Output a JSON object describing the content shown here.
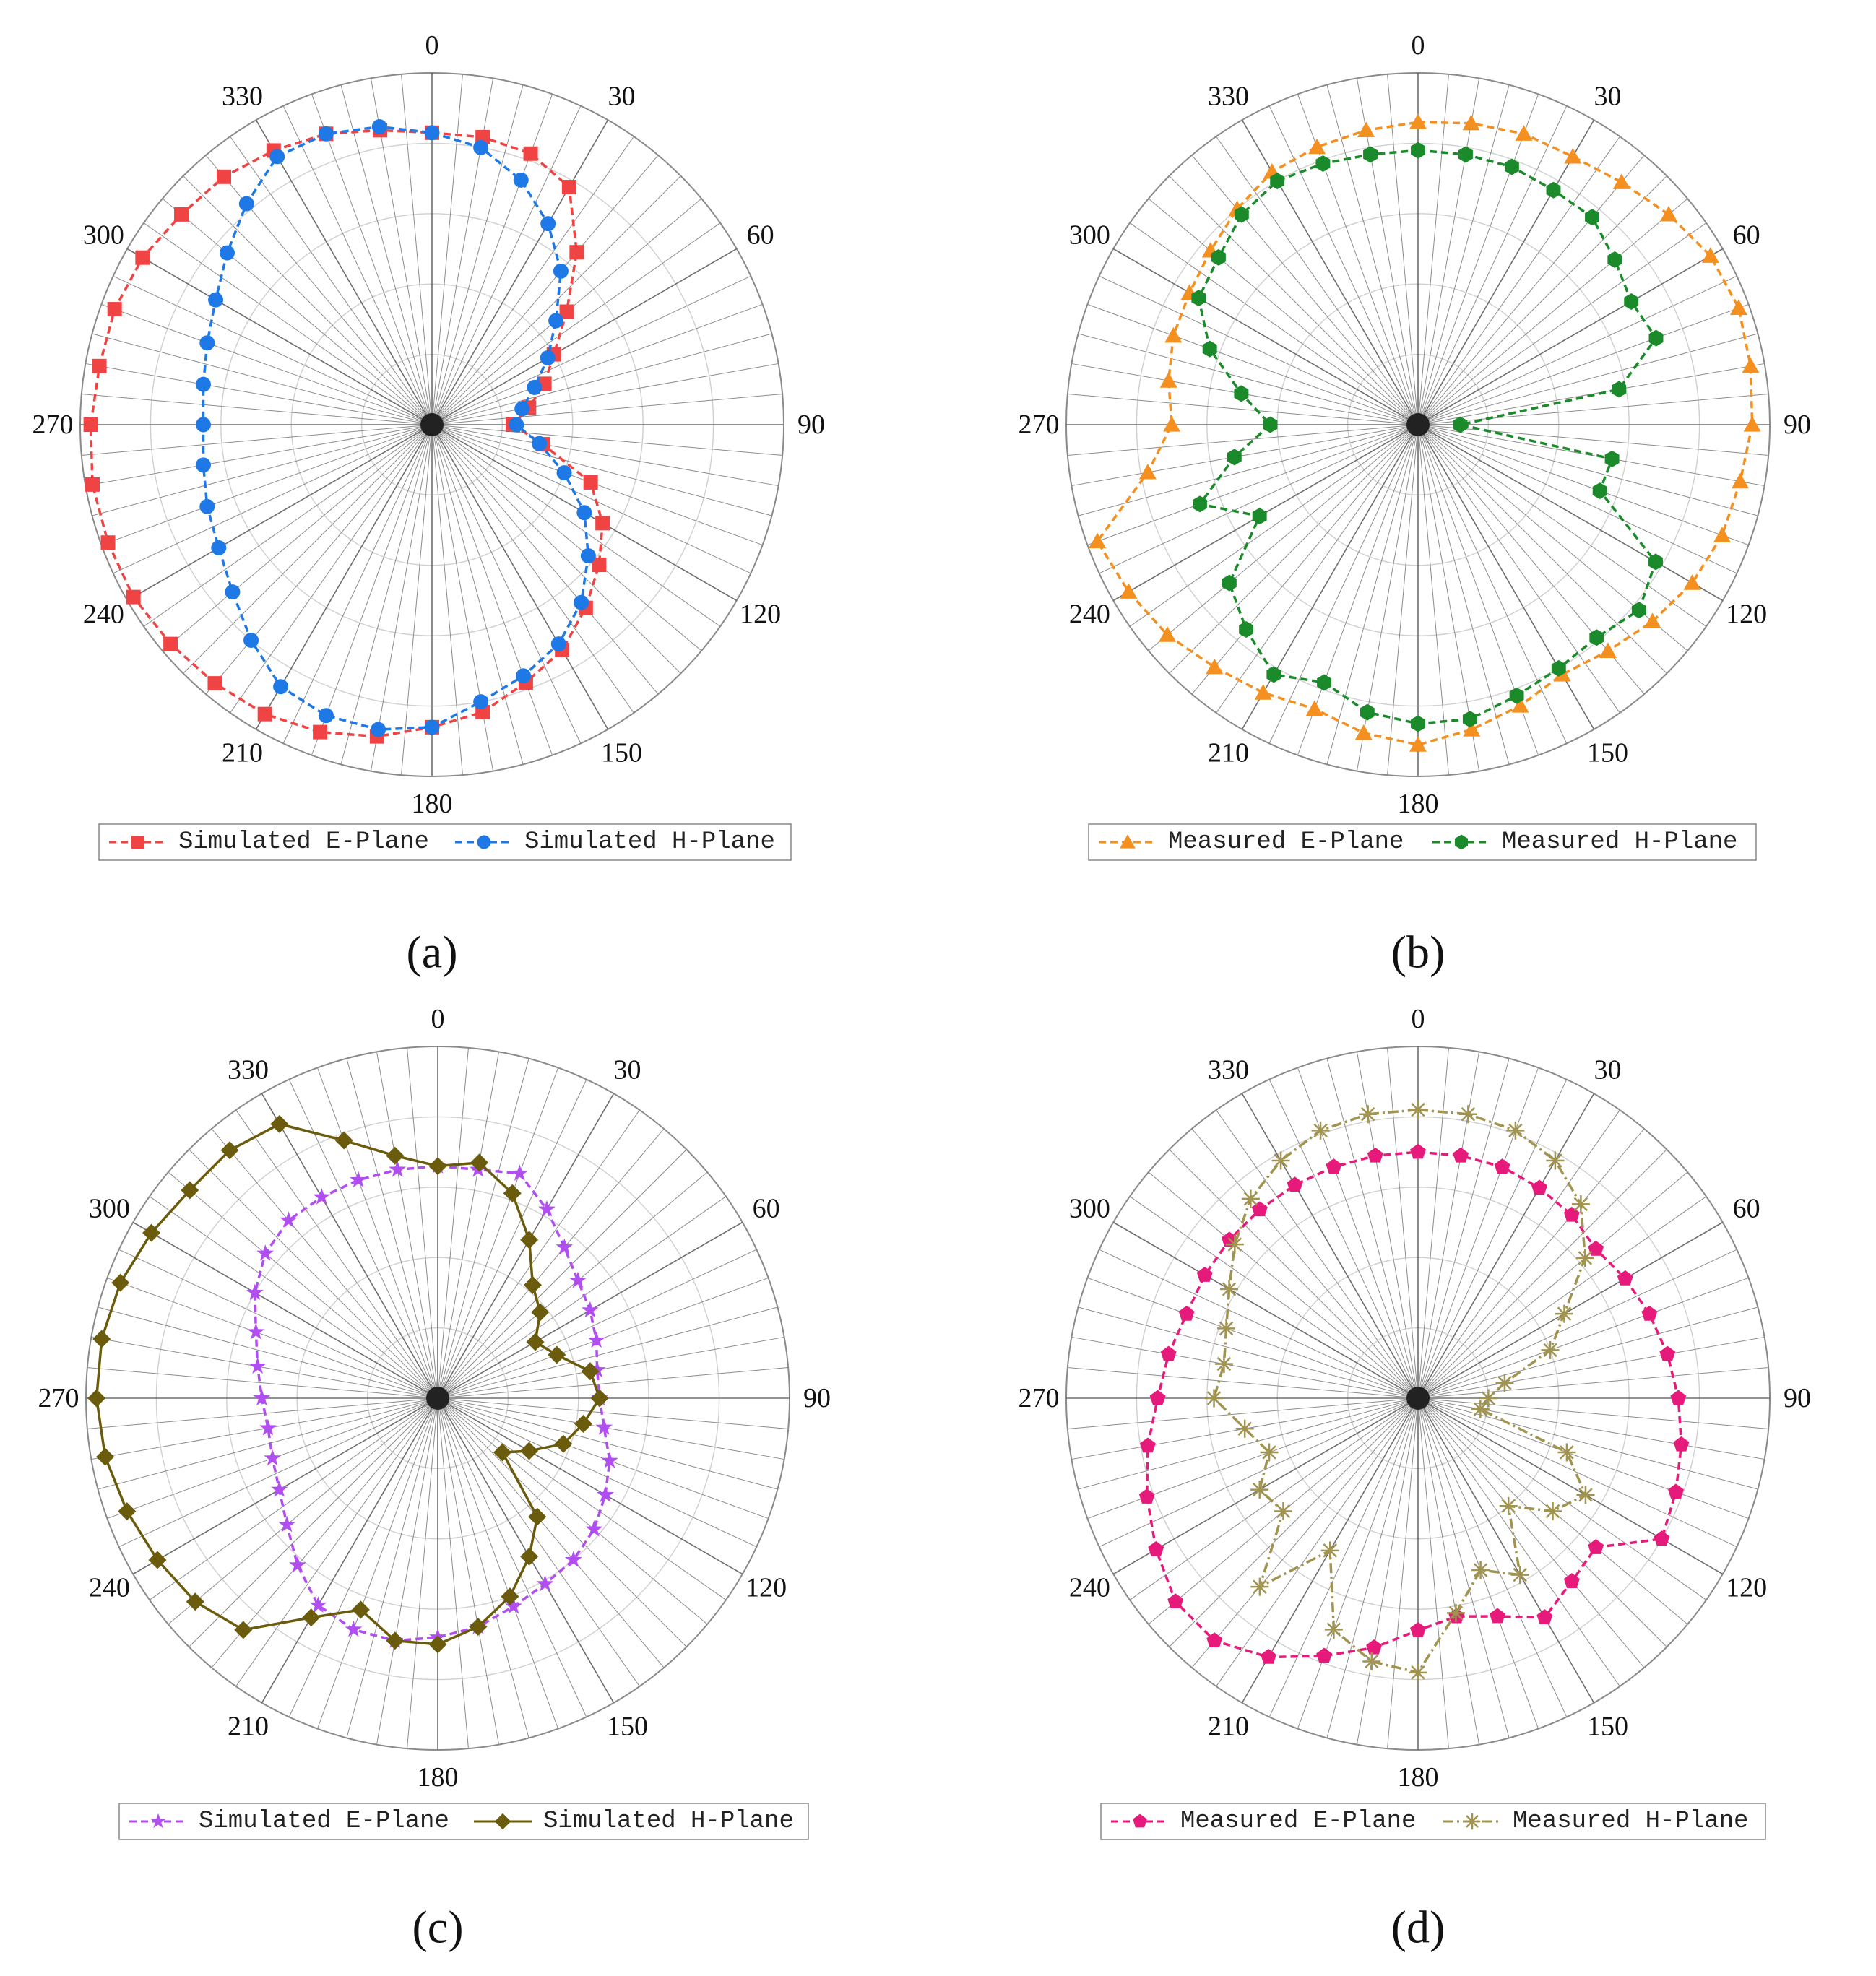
{
  "figure": {
    "panels": [
      "a",
      "b",
      "c",
      "d"
    ]
  },
  "chart_data": [
    {
      "type": "polar",
      "panel_label": "(a)",
      "angle_ticks": [
        "0",
        "30",
        "60",
        "90",
        "120",
        "150",
        "180",
        "210",
        "240",
        "270",
        "300",
        "330"
      ],
      "radial_grid_divisions": 5,
      "angle_grid_step_deg": 5,
      "rlim": [
        0,
        1
      ],
      "legend": {
        "placement": "bottom"
      },
      "series": [
        {
          "name": "Simulated E-Plane",
          "color": "#f04444",
          "marker": "square",
          "line": "dashed",
          "angles": [
            0,
            10,
            20,
            30,
            40,
            50,
            60,
            70,
            80,
            90,
            100,
            110,
            120,
            130,
            140,
            150,
            160,
            170,
            180,
            190,
            200,
            210,
            220,
            230,
            240,
            250,
            260,
            270,
            280,
            290,
            300,
            310,
            320,
            330,
            340,
            350
          ],
          "values": [
            0.83,
            0.83,
            0.82,
            0.78,
            0.64,
            0.5,
            0.4,
            0.34,
            0.28,
            0.23,
            0.32,
            0.48,
            0.56,
            0.62,
            0.68,
            0.74,
            0.78,
            0.83,
            0.86,
            0.9,
            0.93,
            0.95,
            0.96,
            0.97,
            0.98,
            0.98,
            0.98,
            0.97,
            0.96,
            0.96,
            0.95,
            0.93,
            0.92,
            0.9,
            0.88,
            0.85
          ]
        },
        {
          "name": "Simulated H-Plane",
          "color": "#1e78e6",
          "marker": "circle",
          "line": "dashed",
          "angles": [
            0,
            10,
            20,
            30,
            40,
            50,
            60,
            70,
            80,
            90,
            100,
            110,
            120,
            130,
            140,
            150,
            160,
            170,
            180,
            190,
            200,
            210,
            220,
            230,
            240,
            250,
            260,
            270,
            280,
            290,
            300,
            310,
            320,
            330,
            340,
            350
          ],
          "values": [
            0.83,
            0.8,
            0.74,
            0.66,
            0.57,
            0.46,
            0.38,
            0.31,
            0.26,
            0.24,
            0.31,
            0.4,
            0.5,
            0.58,
            0.66,
            0.72,
            0.76,
            0.8,
            0.86,
            0.88,
            0.88,
            0.86,
            0.8,
            0.74,
            0.7,
            0.68,
            0.66,
            0.65,
            0.66,
            0.68,
            0.71,
            0.76,
            0.82,
            0.88,
            0.88,
            0.86
          ]
        }
      ]
    },
    {
      "type": "polar",
      "panel_label": "(b)",
      "angle_ticks": [
        "0",
        "30",
        "60",
        "90",
        "120",
        "150",
        "180",
        "210",
        "240",
        "270",
        "300",
        "330"
      ],
      "radial_grid_divisions": 5,
      "angle_grid_step_deg": 5,
      "rlim": [
        0,
        1
      ],
      "legend": {
        "placement": "bottom"
      },
      "series": [
        {
          "name": "Measured E-Plane",
          "color": "#f39020",
          "marker": "triangle",
          "line": "dashed",
          "angles": [
            0,
            10,
            20,
            30,
            40,
            50,
            60,
            70,
            80,
            90,
            100,
            110,
            120,
            130,
            140,
            150,
            160,
            170,
            180,
            190,
            200,
            210,
            220,
            230,
            240,
            250,
            260,
            270,
            280,
            290,
            300,
            310,
            320,
            330,
            340,
            350
          ],
          "values": [
            0.86,
            0.87,
            0.88,
            0.88,
            0.9,
            0.93,
            0.96,
            0.97,
            0.96,
            0.95,
            0.93,
            0.92,
            0.9,
            0.87,
            0.84,
            0.82,
            0.85,
            0.88,
            0.91,
            0.89,
            0.86,
            0.88,
            0.9,
            0.93,
            0.95,
            0.97,
            0.78,
            0.7,
            0.72,
            0.74,
            0.75,
            0.77,
            0.8,
            0.83,
            0.84,
            0.85
          ]
        },
        {
          "name": "Measured H-Plane",
          "color": "#1a8a2a",
          "marker": "hexagon",
          "line": "dashed",
          "angles": [
            0,
            10,
            20,
            30,
            40,
            50,
            60,
            70,
            80,
            90,
            100,
            110,
            120,
            130,
            140,
            150,
            160,
            170,
            180,
            190,
            200,
            210,
            220,
            230,
            240,
            250,
            260,
            270,
            280,
            290,
            300,
            310,
            320,
            330,
            340,
            350
          ],
          "values": [
            0.78,
            0.78,
            0.78,
            0.77,
            0.77,
            0.73,
            0.7,
            0.72,
            0.58,
            0.12,
            0.56,
            0.55,
            0.78,
            0.82,
            0.79,
            0.8,
            0.82,
            0.85,
            0.85,
            0.83,
            0.78,
            0.82,
            0.76,
            0.7,
            0.52,
            0.66,
            0.53,
            0.42,
            0.51,
            0.63,
            0.72,
            0.74,
            0.78,
            0.8,
            0.79,
            0.78
          ]
        }
      ]
    },
    {
      "type": "polar",
      "panel_label": "(c)",
      "angle_ticks": [
        "0",
        "30",
        "60",
        "90",
        "120",
        "150",
        "180",
        "210",
        "240",
        "270",
        "300",
        "330"
      ],
      "radial_grid_divisions": 5,
      "angle_grid_step_deg": 5,
      "rlim": [
        0,
        1
      ],
      "legend": {
        "placement": "bottom"
      },
      "series": [
        {
          "name": "Simulated E-Plane",
          "color": "#b04ef0",
          "marker": "star",
          "line": "dashed",
          "angles": [
            0,
            10,
            20,
            30,
            40,
            50,
            60,
            70,
            80,
            90,
            100,
            110,
            120,
            130,
            140,
            150,
            160,
            170,
            180,
            190,
            200,
            210,
            220,
            230,
            240,
            250,
            260,
            270,
            280,
            290,
            300,
            310,
            320,
            330,
            340,
            350
          ],
          "values": [
            0.66,
            0.66,
            0.68,
            0.62,
            0.56,
            0.52,
            0.5,
            0.48,
            0.46,
            0.46,
            0.48,
            0.52,
            0.55,
            0.58,
            0.6,
            0.61,
            0.63,
            0.66,
            0.68,
            0.7,
            0.7,
            0.68,
            0.62,
            0.56,
            0.52,
            0.5,
            0.49,
            0.5,
            0.52,
            0.55,
            0.6,
            0.64,
            0.66,
            0.66,
            0.66,
            0.66
          ]
        },
        {
          "name": "Simulated H-Plane",
          "color": "#6b5b0c",
          "marker": "diamond",
          "line": "solid",
          "angles": [
            0,
            10,
            20,
            30,
            40,
            50,
            60,
            70,
            80,
            90,
            100,
            110,
            120,
            130,
            140,
            150,
            160,
            170,
            180,
            190,
            200,
            210,
            220,
            230,
            240,
            250,
            260,
            270,
            280,
            290,
            300,
            310,
            320,
            330,
            340,
            350
          ],
          "values": [
            0.66,
            0.68,
            0.62,
            0.52,
            0.42,
            0.38,
            0.32,
            0.36,
            0.44,
            0.46,
            0.42,
            0.38,
            0.3,
            0.24,
            0.44,
            0.52,
            0.6,
            0.66,
            0.7,
            0.7,
            0.64,
            0.72,
            0.86,
            0.9,
            0.92,
            0.94,
            0.96,
            0.97,
            0.97,
            0.96,
            0.94,
            0.92,
            0.92,
            0.9,
            0.78,
            0.7
          ]
        }
      ]
    },
    {
      "type": "polar",
      "panel_label": "(d)",
      "angle_ticks": [
        "0",
        "30",
        "60",
        "90",
        "120",
        "150",
        "180",
        "210",
        "240",
        "270",
        "300",
        "330"
      ],
      "radial_grid_divisions": 5,
      "angle_grid_step_deg": 5,
      "rlim": [
        0,
        1
      ],
      "legend": {
        "placement": "bottom"
      },
      "series": [
        {
          "name": "Measured E-Plane",
          "color": "#e61a7a",
          "marker": "pentagon",
          "line": "dashed",
          "angles": [
            0,
            10,
            20,
            30,
            40,
            50,
            60,
            70,
            80,
            90,
            100,
            110,
            120,
            130,
            140,
            150,
            160,
            170,
            180,
            190,
            200,
            210,
            220,
            230,
            240,
            250,
            260,
            270,
            280,
            290,
            300,
            310,
            320,
            330,
            340,
            350
          ],
          "values": [
            0.7,
            0.7,
            0.7,
            0.69,
            0.68,
            0.66,
            0.68,
            0.7,
            0.72,
            0.74,
            0.76,
            0.78,
            0.8,
            0.66,
            0.68,
            0.72,
            0.66,
            0.63,
            0.66,
            0.72,
            0.78,
            0.85,
            0.9,
            0.9,
            0.86,
            0.82,
            0.78,
            0.74,
            0.72,
            0.7,
            0.7,
            0.7,
            0.7,
            0.7,
            0.7,
            0.7
          ]
        },
        {
          "name": "Measured H-Plane",
          "color": "#a09450",
          "marker": "asterisk",
          "line": "dashdot",
          "angles": [
            0,
            10,
            20,
            30,
            40,
            50,
            60,
            70,
            80,
            90,
            100,
            110,
            120,
            130,
            140,
            150,
            160,
            170,
            180,
            190,
            200,
            210,
            220,
            230,
            240,
            250,
            260,
            270,
            280,
            290,
            300,
            310,
            320,
            330,
            340,
            350
          ],
          "values": [
            0.82,
            0.82,
            0.81,
            0.78,
            0.72,
            0.62,
            0.48,
            0.4,
            0.25,
            0.2,
            0.18,
            0.45,
            0.55,
            0.5,
            0.4,
            0.58,
            0.52,
            0.62,
            0.78,
            0.76,
            0.7,
            0.5,
            0.7,
            0.5,
            0.52,
            0.45,
            0.5,
            0.58,
            0.56,
            0.58,
            0.62,
            0.68,
            0.74,
            0.78,
            0.81,
            0.82
          ]
        }
      ]
    }
  ]
}
